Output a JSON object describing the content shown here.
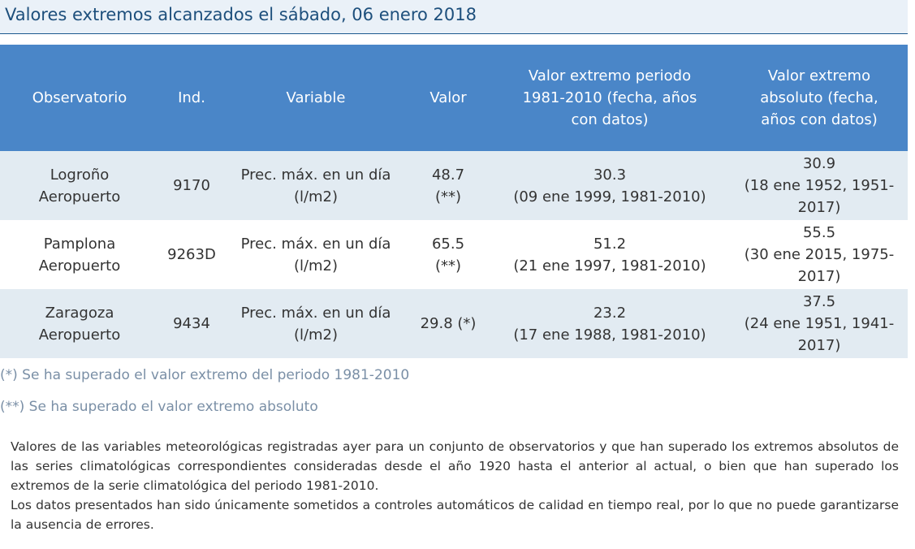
{
  "title": "Valores extremos alcanzados el sábado, 06 enero 2018",
  "table": {
    "headers": {
      "observatorio": "Observatorio",
      "ind": "Ind.",
      "variable": "Variable",
      "valor": "Valor",
      "periodo": "Valor extremo periodo 1981-2010 (fecha, años con datos)",
      "absoluto": "Valor extremo absoluto (fecha, años con datos)"
    },
    "rows": [
      {
        "observatorio": "Logroño Aeropuerto",
        "ind": "9170",
        "variable": "Prec. máx. en un día (l/m2)",
        "valor": "48.7 (**)",
        "periodo_valor": "30.3",
        "periodo_fecha": "(09 ene 1999, 1981-2010)",
        "absoluto_valor": "30.9",
        "absoluto_fecha": "(18 ene 1952, 1951-2017)"
      },
      {
        "observatorio": "Pamplona Aeropuerto",
        "ind": "9263D",
        "variable": "Prec. máx. en un día (l/m2)",
        "valor": "65.5 (**)",
        "periodo_valor": "51.2",
        "periodo_fecha": "(21 ene 1997, 1981-2010)",
        "absoluto_valor": "55.5",
        "absoluto_fecha": "(30 ene 2015, 1975-2017)"
      },
      {
        "observatorio": "Zaragoza Aeropuerto",
        "ind": "9434",
        "variable": "Prec. máx. en un día (l/m2)",
        "valor": "29.8 (*)",
        "periodo_valor": "23.2",
        "periodo_fecha": "(17 ene 1988, 1981-2010)",
        "absoluto_valor": "37.5",
        "absoluto_fecha": "(24 ene 1951, 1941-2017)"
      }
    ]
  },
  "notes": {
    "single": "(*) Se ha superado el valor extremo del periodo 1981-2010",
    "double": "(**) Se ha superado el valor extremo absoluto"
  },
  "description": {
    "paragraph_1": "Valores de las variables meteorológicas registradas ayer para un conjunto de observatorios y que han superado los extremos absolutos de las series climatológicas correspondientes consideradas desde el año 1920 hasta el anterior al actual, o bien que han superado los extremos de la serie climatológica del periodo 1981-2010.",
    "paragraph_2": "Los datos presentados han sido únicamente sometidos a controles automáticos de calidad en tiempo real, por lo que no puede garantizarse la ausencia de errores."
  }
}
